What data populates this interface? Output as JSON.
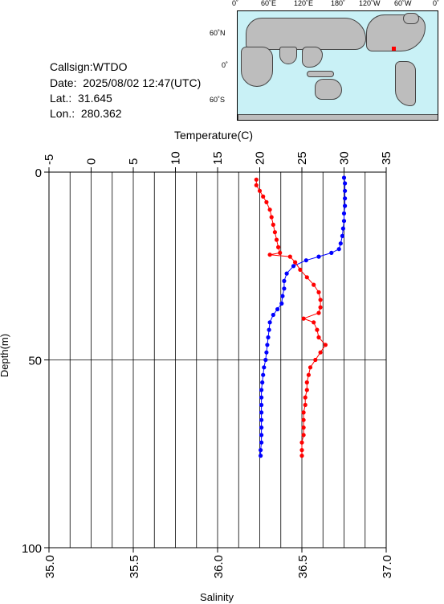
{
  "station": {
    "callsign_text": "Callsign:WTDO",
    "date_text": "Date:  2025/08/02 12:47(UTC)",
    "lat_text": "Lat.:  31.645",
    "lon_text": "Lon.:  280.362"
  },
  "map": {
    "lon_labels": [
      "0˚",
      "60˚E",
      "120˚E",
      "180˚",
      "120˚W",
      "60˚W",
      "0˚"
    ],
    "lat_labels": [
      "60˚N",
      "0˚",
      "60˚S"
    ],
    "marker_color": "#ff0000",
    "ocean_color": "#c9f1f6",
    "land_color": "#bdbdbd"
  },
  "chart_data": {
    "type": "line",
    "ylabel": "Depth(m)",
    "y_ticks": [
      "0",
      "50",
      "100"
    ],
    "ylim": [
      0,
      100
    ],
    "y_inverted": true,
    "temperature_axis": {
      "label": "Temperature(C)",
      "ticks": [
        "-5",
        "0",
        "5",
        "10",
        "15",
        "20",
        "25",
        "30",
        "35"
      ],
      "range": [
        -5,
        35
      ],
      "position": "top"
    },
    "salinity_axis": {
      "label": "Salinity",
      "ticks": [
        "35.0",
        "35.5",
        "36.0",
        "36.5",
        "37.0"
      ],
      "range": [
        35.0,
        37.0
      ],
      "position": "bottom"
    },
    "grid": true,
    "series": [
      {
        "color": "#0000ff",
        "axis": "temperature",
        "points": [
          [
            30.0,
            1.5
          ],
          [
            30.1,
            3
          ],
          [
            30.1,
            5
          ],
          [
            30.1,
            7
          ],
          [
            30.1,
            9
          ],
          [
            30.0,
            11
          ],
          [
            30.0,
            13
          ],
          [
            29.9,
            15
          ],
          [
            29.8,
            17
          ],
          [
            29.6,
            19
          ],
          [
            29.4,
            20.5
          ],
          [
            28.5,
            21.5
          ],
          [
            27.0,
            22.5
          ],
          [
            25.5,
            23.5
          ],
          [
            24.0,
            25
          ],
          [
            23.2,
            27
          ],
          [
            22.9,
            29
          ],
          [
            22.9,
            31
          ],
          [
            22.7,
            33
          ],
          [
            22.6,
            35
          ],
          [
            22.1,
            36.5
          ],
          [
            21.6,
            38
          ],
          [
            21.2,
            40
          ],
          [
            21.1,
            42
          ],
          [
            21.0,
            44
          ],
          [
            20.9,
            46
          ],
          [
            20.8,
            48
          ],
          [
            20.7,
            50
          ],
          [
            20.5,
            52
          ],
          [
            20.4,
            54
          ],
          [
            20.3,
            56
          ],
          [
            20.2,
            58
          ],
          [
            20.2,
            60
          ],
          [
            20.2,
            62
          ],
          [
            20.2,
            64
          ],
          [
            20.2,
            66
          ],
          [
            20.2,
            68
          ],
          [
            20.2,
            70
          ],
          [
            20.2,
            72
          ],
          [
            20.1,
            74
          ],
          [
            20.1,
            75.5
          ]
        ]
      },
      {
        "color": "#ff0000",
        "axis": "salinity",
        "points": [
          [
            36.23,
            2
          ],
          [
            36.23,
            3.5
          ],
          [
            36.25,
            5
          ],
          [
            36.27,
            6.5
          ],
          [
            36.29,
            8
          ],
          [
            36.31,
            10
          ],
          [
            36.32,
            12
          ],
          [
            36.33,
            14
          ],
          [
            36.34,
            16
          ],
          [
            36.35,
            18
          ],
          [
            36.36,
            20
          ],
          [
            36.37,
            21.5
          ],
          [
            36.31,
            22
          ],
          [
            36.43,
            22.5
          ],
          [
            36.46,
            24
          ],
          [
            36.49,
            26
          ],
          [
            36.53,
            28
          ],
          [
            36.57,
            30
          ],
          [
            36.6,
            32
          ],
          [
            36.61,
            34
          ],
          [
            36.61,
            36
          ],
          [
            36.6,
            37.5
          ],
          [
            36.51,
            39
          ],
          [
            36.57,
            40
          ],
          [
            36.59,
            42
          ],
          [
            36.6,
            44
          ],
          [
            36.64,
            46
          ],
          [
            36.61,
            48
          ],
          [
            36.58,
            50
          ],
          [
            36.55,
            52
          ],
          [
            36.54,
            54
          ],
          [
            36.53,
            56
          ],
          [
            36.53,
            58
          ],
          [
            36.52,
            60
          ],
          [
            36.52,
            62
          ],
          [
            36.51,
            64
          ],
          [
            36.51,
            66
          ],
          [
            36.51,
            68
          ],
          [
            36.51,
            70
          ],
          [
            36.5,
            72
          ],
          [
            36.5,
            74
          ],
          [
            36.5,
            75.5
          ]
        ]
      }
    ]
  }
}
